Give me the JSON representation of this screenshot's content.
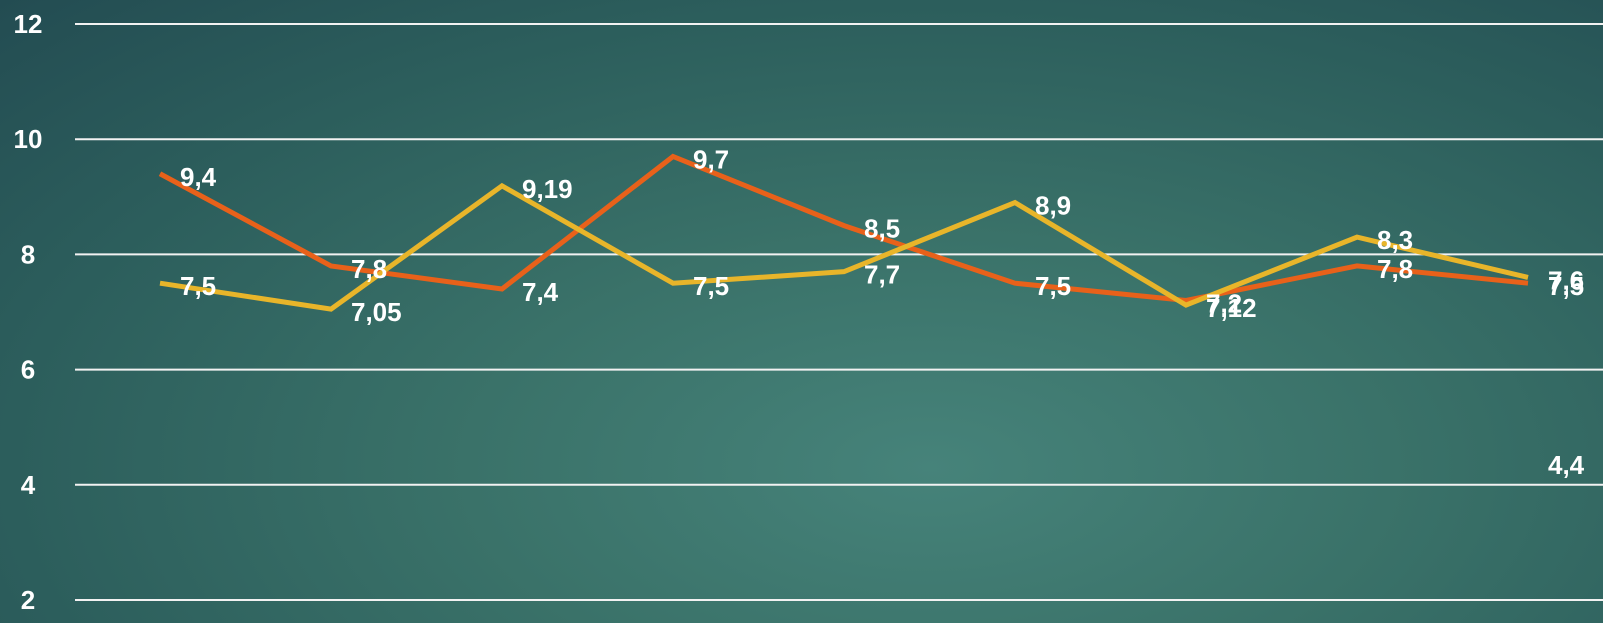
{
  "chart_data": {
    "type": "line",
    "title": "",
    "xlabel": "",
    "ylabel": "",
    "ylim": [
      2,
      12
    ],
    "yticks": [
      "12",
      "10",
      "8",
      "6",
      "4",
      "2"
    ],
    "grid": true,
    "x_count": 9,
    "series": [
      {
        "color": "#e8611a",
        "values": [
          9.4,
          7.8,
          7.4,
          9.7,
          8.5,
          7.5,
          7.2,
          7.8,
          7.5
        ],
        "labels": [
          "9,4",
          "7,8",
          "7,4",
          "9,7",
          "8,5",
          "7,5",
          "7,2",
          "7,8",
          "7,5"
        ]
      },
      {
        "color": "#e8b52a",
        "values": [
          7.5,
          7.05,
          9.19,
          7.5,
          7.7,
          8.9,
          7.12,
          8.3,
          7.6
        ],
        "labels": [
          "7,5",
          "7,05",
          "9,19",
          "7,5",
          "7,7",
          "8,9",
          "7,12",
          "8,3",
          "7,6"
        ]
      }
    ],
    "extra_labels": [
      {
        "text": "4,4",
        "x_index": 8,
        "y": 4.4
      }
    ]
  }
}
